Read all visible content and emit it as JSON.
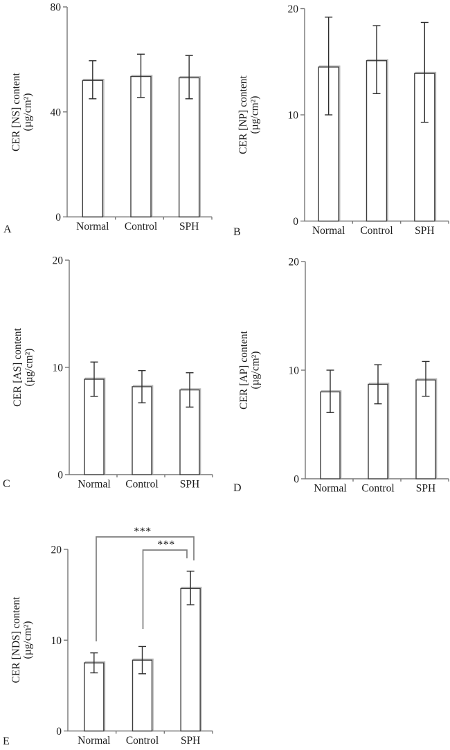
{
  "chart_data": [
    {
      "type": "bar",
      "panel": "A",
      "title": "",
      "xlabel": "",
      "ylabel": "CER [NS] content (µg/cm²)",
      "ylabel_lines": [
        "CER [NS] content",
        "(µg/cm²)"
      ],
      "categories": [
        "Normal",
        "Control",
        "SPH"
      ],
      "values": [
        52.0,
        53.5,
        53.0
      ],
      "error_low": [
        45.0,
        45.5,
        45.0
      ],
      "error_high": [
        59.5,
        62.0,
        61.5
      ],
      "ylim": [
        0,
        80
      ],
      "yticks": [
        0,
        40,
        80
      ],
      "grid": false,
      "legend": "none",
      "bar_fill": "#ffffff",
      "bar_edge": "#3d3d3d",
      "significance": []
    },
    {
      "type": "bar",
      "panel": "B",
      "title": "",
      "xlabel": "",
      "ylabel": "CER [NP] content (µg/cm²)",
      "ylabel_lines": [
        "CER [NP] content",
        "(µg/cm²)"
      ],
      "categories": [
        "Normal",
        "Control",
        "SPH"
      ],
      "values": [
        14.5,
        15.1,
        13.9
      ],
      "error_low": [
        10.0,
        12.0,
        9.3
      ],
      "error_high": [
        19.2,
        18.4,
        18.7
      ],
      "ylim": [
        0,
        20
      ],
      "yticks": [
        0,
        10,
        20
      ],
      "grid": false,
      "legend": "none",
      "bar_fill": "#ffffff",
      "bar_edge": "#3d3d3d",
      "significance": []
    },
    {
      "type": "bar",
      "panel": "C",
      "title": "",
      "xlabel": "",
      "ylabel": "CER [AS] content (µg/cm²)",
      "ylabel_lines": [
        "CER [AS] content",
        "(µg/cm²)"
      ],
      "categories": [
        "Normal",
        "Control",
        "SPH"
      ],
      "values": [
        8.9,
        8.2,
        7.9
      ],
      "error_low": [
        7.3,
        6.7,
        6.3
      ],
      "error_high": [
        10.5,
        9.7,
        9.5
      ],
      "ylim": [
        0,
        20
      ],
      "yticks": [
        0,
        10,
        20
      ],
      "grid": false,
      "legend": "none",
      "bar_fill": "#ffffff",
      "bar_edge": "#3d3d3d",
      "significance": []
    },
    {
      "type": "bar",
      "panel": "D",
      "title": "",
      "xlabel": "",
      "ylabel": "CER [AP] content (µg/cm²)",
      "ylabel_lines": [
        "CER [AP] content",
        "(µg/cm²)"
      ],
      "categories": [
        "Normal",
        "Control",
        "SPH"
      ],
      "values": [
        8.0,
        8.7,
        9.1
      ],
      "error_low": [
        6.1,
        6.9,
        7.6
      ],
      "error_high": [
        10.0,
        10.5,
        10.8
      ],
      "ylim": [
        0,
        20
      ],
      "yticks": [
        0,
        10,
        20
      ],
      "grid": false,
      "legend": "none",
      "bar_fill": "#ffffff",
      "bar_edge": "#3d3d3d",
      "significance": []
    },
    {
      "type": "bar",
      "panel": "E",
      "title": "",
      "xlabel": "",
      "ylabel": "CER [NDS] content (µg/cm²)",
      "ylabel_lines": [
        "CER [NDS] content",
        "(µg/cm²)"
      ],
      "categories": [
        "Normal",
        "Control",
        "SPH"
      ],
      "values": [
        7.5,
        7.8,
        15.7
      ],
      "error_low": [
        6.4,
        6.3,
        13.9
      ],
      "error_high": [
        8.6,
        9.3,
        17.6
      ],
      "ylim": [
        0,
        20
      ],
      "yticks": [
        0,
        10,
        20
      ],
      "grid": false,
      "legend": "none",
      "bar_fill": "#ffffff",
      "bar_edge": "#3d3d3d",
      "significance": [
        {
          "label": "***",
          "from": "Normal",
          "to": "SPH"
        },
        {
          "label": "***",
          "from": "Control",
          "to": "SPH"
        }
      ]
    }
  ]
}
